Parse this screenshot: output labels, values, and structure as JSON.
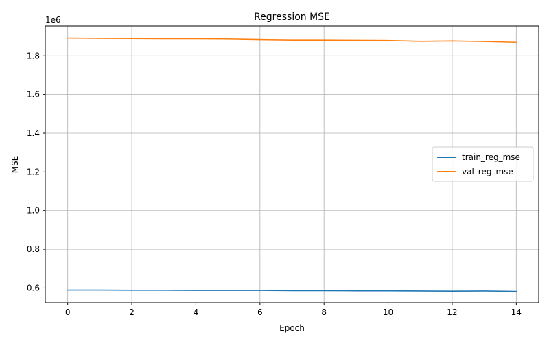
{
  "chart_data": {
    "type": "line",
    "title": "Regression MSE",
    "xlabel": "Epoch",
    "ylabel": "MSE",
    "y_offset_label": "1e6",
    "x": [
      0,
      1,
      2,
      3,
      4,
      5,
      6,
      7,
      8,
      9,
      10,
      11,
      12,
      13,
      14
    ],
    "xlim": [
      -0.7,
      14.7
    ],
    "ylim": [
      0.5235,
      1.9535
    ],
    "x_ticks": [
      0,
      2,
      4,
      6,
      8,
      10,
      12,
      14
    ],
    "x_tick_labels": [
      "0",
      "2",
      "4",
      "6",
      "8",
      "10",
      "12",
      "14"
    ],
    "y_ticks": [
      0.6,
      0.8,
      1.0,
      1.2,
      1.4,
      1.6,
      1.8
    ],
    "y_tick_labels": [
      "0.6",
      "0.8",
      "1.0",
      "1.2",
      "1.4",
      "1.6",
      "1.8"
    ],
    "grid": true,
    "legend_position": "center-right",
    "series": [
      {
        "name": "train_reg_mse",
        "color": "#1f77b4",
        "values": [
          0.589,
          0.589,
          0.588,
          0.588,
          0.587,
          0.587,
          0.587,
          0.586,
          0.586,
          0.585,
          0.585,
          0.584,
          0.583,
          0.584,
          0.582
        ]
      },
      {
        "name": "val_reg_mse",
        "color": "#ff7f0e",
        "values": [
          1.891,
          1.89,
          1.889,
          1.888,
          1.888,
          1.887,
          1.884,
          1.882,
          1.882,
          1.881,
          1.88,
          1.876,
          1.878,
          1.875,
          1.871
        ]
      }
    ]
  }
}
